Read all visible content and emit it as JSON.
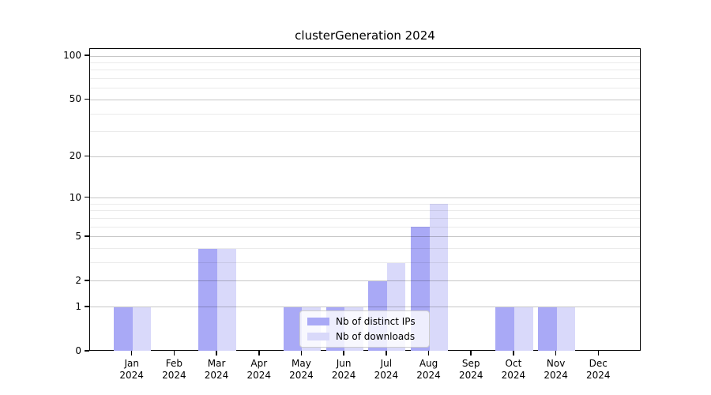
{
  "figure": {
    "background": "#ffffff"
  },
  "colors": {
    "distinct_ips": "#a9a9f6",
    "downloads": "#d9d9fa",
    "grid_major": "rgba(0,0,0,0.22)",
    "grid_minor": "rgba(0,0,0,0.08)",
    "axis": "#000000",
    "legend_border": "#cccccc"
  },
  "chart_data": {
    "type": "bar",
    "title": "clusterGeneration 2024",
    "categories": [
      "Jan 2024",
      "Feb 2024",
      "Mar 2024",
      "Apr 2024",
      "May 2024",
      "Jun 2024",
      "Jul 2024",
      "Aug 2024",
      "Sep 2024",
      "Oct 2024",
      "Nov 2024",
      "Dec 2024"
    ],
    "series": [
      {
        "name": "Nb of distinct IPs",
        "color": "#a9a9f6",
        "values": [
          1,
          0,
          4,
          0,
          1,
          1,
          2,
          6,
          0,
          1,
          1,
          0
        ]
      },
      {
        "name": "Nb of downloads",
        "color": "#d9d9fa",
        "values": [
          1,
          0,
          4,
          0,
          1,
          1,
          3,
          9,
          0,
          1,
          1,
          0
        ]
      }
    ],
    "xlabel": "",
    "ylabel": "",
    "y_scale": "log1p",
    "y_ticks": [
      0,
      1,
      2,
      5,
      10,
      20,
      50,
      100
    ],
    "y_minor_gridlines": [
      3,
      4,
      6,
      7,
      8,
      9,
      30,
      40,
      60,
      70,
      80,
      90
    ],
    "ylim": [
      0,
      112
    ],
    "grid": "horizontal",
    "legend_position": "lower center"
  }
}
